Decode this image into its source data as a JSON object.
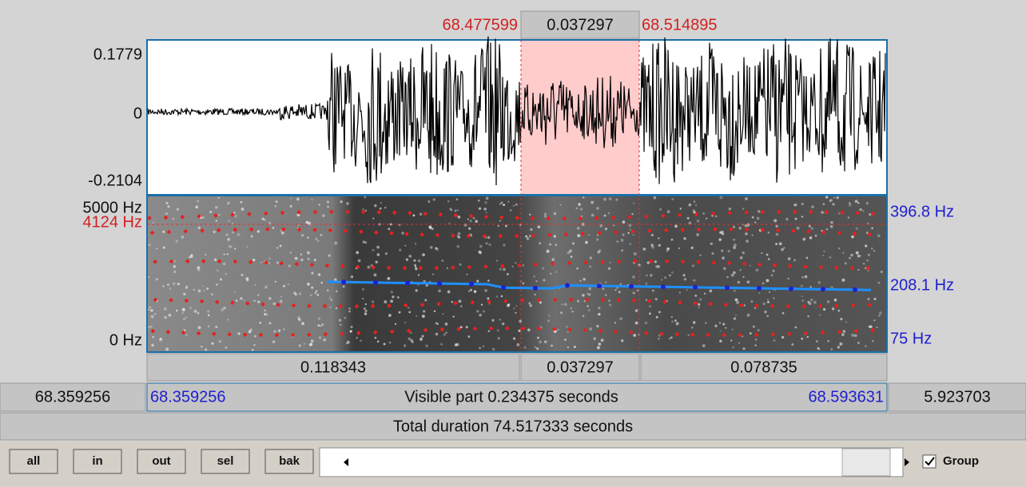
{
  "selection": {
    "start": "68.477599",
    "duration": "0.037297",
    "end": "68.514895"
  },
  "waveform": {
    "max": "0.1779",
    "zero": "0",
    "min": "-0.2104"
  },
  "spectrogram": {
    "top": "5000 Hz",
    "cursor": "4124 Hz",
    "bottom": "0 Hz"
  },
  "pitch": {
    "top": "396.8 Hz",
    "current": "208.1 Hz",
    "bottom": "75 Hz"
  },
  "intervals": [
    "0.118343",
    "0.037297",
    "0.078735"
  ],
  "visible": {
    "window_start": "68.359256",
    "start": "68.359256",
    "label": "Visible part 0.234375 seconds",
    "end": "68.593631",
    "remaining": "5.923703"
  },
  "total": "Total duration 74.517333 seconds",
  "buttons": [
    "all",
    "in",
    "out",
    "sel",
    "bak"
  ],
  "group": "Group"
}
